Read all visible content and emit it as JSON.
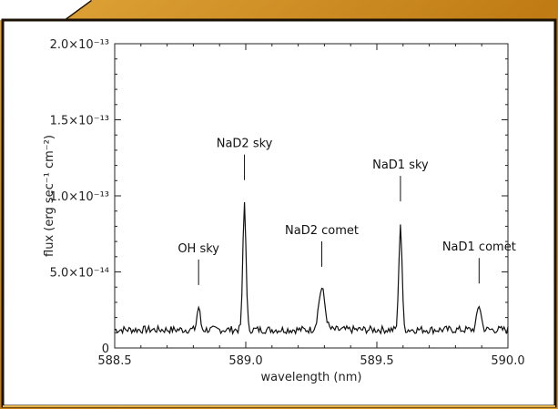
{
  "colors": {
    "frame_gold": "#c9881c",
    "frame_gold_light": "#e5b34a",
    "frame_dark": "#1a1004",
    "panel_bg": "#ffffff",
    "line": "#111111"
  },
  "chart_data": {
    "type": "line",
    "title": "",
    "xlabel": "wavelength (nm)",
    "ylabel": "flux (erg sec⁻¹ cm⁻²)",
    "xlim": [
      588.5,
      590.0
    ],
    "ylim": [
      0,
      2e-13
    ],
    "grid": false,
    "x_ticks": [
      {
        "value": 588.5,
        "label": "588.5"
      },
      {
        "value": 589.0,
        "label": "589.0"
      },
      {
        "value": 589.5,
        "label": "589.5"
      },
      {
        "value": 590.0,
        "label": "590.0"
      }
    ],
    "y_ticks": [
      {
        "value": 0,
        "label": "0"
      },
      {
        "value": 5e-14,
        "label": "5.0×10⁻¹⁴"
      },
      {
        "value": 1e-13,
        "label": "1.0×10⁻¹³"
      },
      {
        "value": 1.5e-13,
        "label": "1.5×10⁻¹³"
      },
      {
        "value": 2e-13,
        "label": "2.0×10⁻¹³"
      }
    ],
    "baseline": 1.2e-14,
    "peaks": [
      {
        "center": 588.82,
        "height": 2.7e-14,
        "width": 0.006
      },
      {
        "center": 588.995,
        "height": 9.6e-14,
        "width": 0.006
      },
      {
        "center": 589.29,
        "height": 3.9e-14,
        "width": 0.012
      },
      {
        "center": 589.59,
        "height": 8.2e-14,
        "width": 0.006
      },
      {
        "center": 589.89,
        "height": 2.8e-14,
        "width": 0.008
      }
    ],
    "annotations": [
      {
        "text": "OH sky",
        "x": 588.82,
        "y": 2.7e-14
      },
      {
        "text": "NaD2 sky",
        "x": 588.995,
        "y": 9.6e-14
      },
      {
        "text": "NaD2 comet",
        "x": 589.29,
        "y": 3.9e-14
      },
      {
        "text": "NaD1 sky",
        "x": 589.59,
        "y": 8.2e-14
      },
      {
        "text": "NaD1 comet",
        "x": 589.89,
        "y": 2.8e-14
      }
    ]
  }
}
